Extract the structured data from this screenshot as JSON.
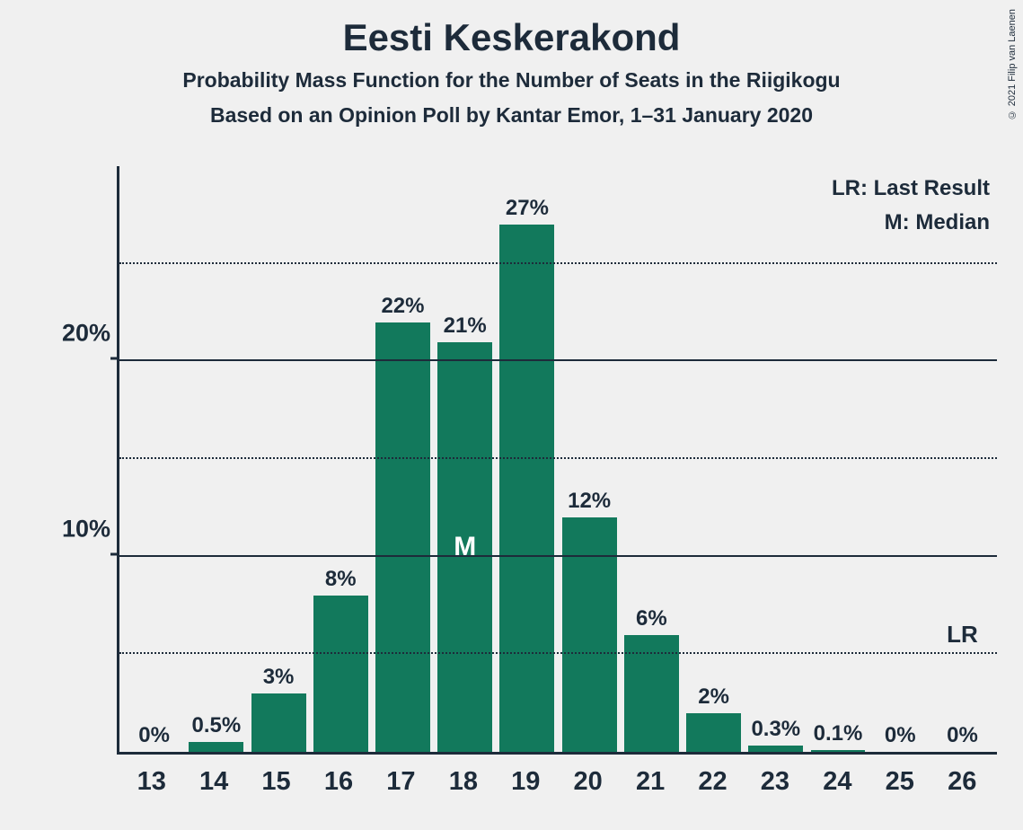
{
  "copyright": "© 2021 Filip van Laenen",
  "title": "Eesti Keskerakond",
  "subtitle1": "Probability Mass Function for the Number of Seats in the Riigikogu",
  "subtitle2": "Based on an Opinion Poll by Kantar Emor, 1–31 January 2020",
  "legend": {
    "lr": "LR: Last Result",
    "m": "M: Median"
  },
  "chart": {
    "type": "bar",
    "bar_color": "#12795c",
    "background_color": "#f0f0f0",
    "axis_color": "#1d2b3a",
    "text_color": "#1d2b3a",
    "ymax": 30,
    "y_major_ticks": [
      10,
      20
    ],
    "y_minor_ticks": [
      5,
      15,
      25
    ],
    "y_tick_labels": [
      "10%",
      "20%"
    ],
    "categories": [
      "13",
      "14",
      "15",
      "16",
      "17",
      "18",
      "19",
      "20",
      "21",
      "22",
      "23",
      "24",
      "25",
      "26"
    ],
    "values": [
      0,
      0.5,
      3,
      8,
      22,
      21,
      27,
      12,
      6,
      2,
      0.3,
      0.1,
      0,
      0
    ],
    "value_labels": [
      "0%",
      "0.5%",
      "3%",
      "8%",
      "22%",
      "21%",
      "27%",
      "12%",
      "6%",
      "2%",
      "0.3%",
      "0.1%",
      "0%",
      "0%"
    ],
    "median_index": 5,
    "median_label": "M",
    "lr_index": 13,
    "lr_label": "LR",
    "title_fontsize": 42,
    "subtitle_fontsize": 23,
    "axis_label_fontsize": 27,
    "bar_label_fontsize": 24,
    "x_label_fontsize": 29
  }
}
